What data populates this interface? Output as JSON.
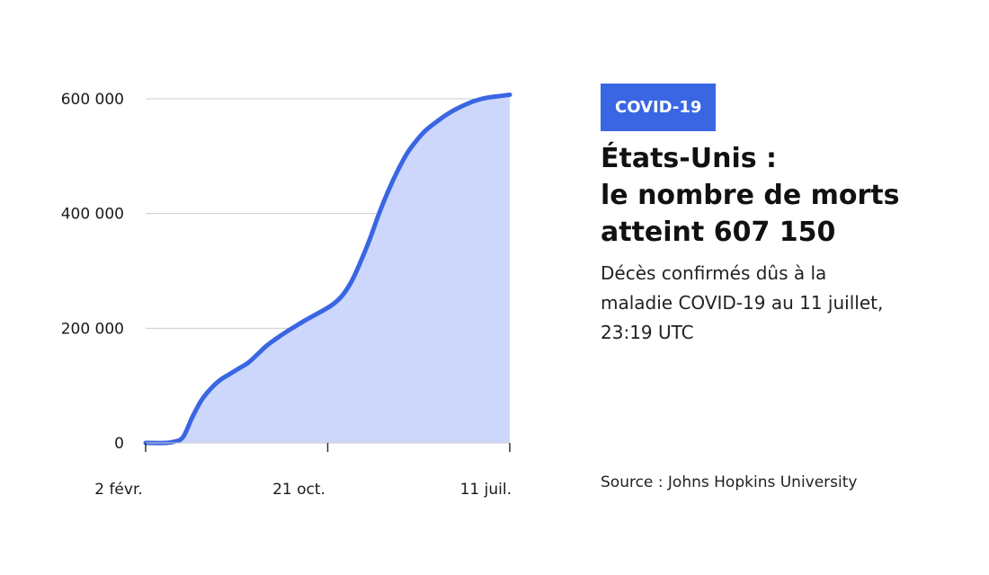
{
  "badge": "COVID-19",
  "title": {
    "lines": [
      "États-Unis :",
      "le nombre de morts",
      "atteint 607 150"
    ]
  },
  "subtitle": {
    "lines": [
      "Décès confirmés dûs à la",
      "maladie COVID-19 au 11 juillet,",
      "23:19 UTC"
    ]
  },
  "source": "Source : Johns Hopkins University",
  "colors": {
    "line": "#3a66e3",
    "fill": "#cdd7fb",
    "badge_bg": "#3a66e3",
    "grid": "#cccccc"
  },
  "chart_data": {
    "type": "area",
    "x_unit": "weeks since first date",
    "x": [
      0,
      4,
      6,
      8,
      10,
      12,
      14,
      16,
      18,
      20,
      22,
      24,
      26,
      28,
      30,
      32,
      34,
      36,
      38,
      40,
      42,
      44,
      46,
      48,
      50,
      52,
      54,
      56,
      58,
      60,
      62,
      64,
      66,
      68,
      70,
      72,
      74,
      76,
      78
    ],
    "values": [
      0,
      0,
      2000,
      10000,
      45000,
      75000,
      95000,
      110000,
      120000,
      130000,
      140000,
      155000,
      170000,
      182000,
      193000,
      203000,
      213000,
      222000,
      231000,
      241000,
      256000,
      280000,
      315000,
      355000,
      400000,
      440000,
      475000,
      505000,
      527000,
      545000,
      558000,
      570000,
      580000,
      588000,
      595000,
      600000,
      603000,
      605000,
      607150
    ],
    "x_ticks": [
      {
        "x": 0,
        "label": "2 févr."
      },
      {
        "x": 39,
        "label": "21 oct."
      },
      {
        "x": 78,
        "label": "11 juil."
      }
    ],
    "y_ticks": [
      {
        "value": 0,
        "label": "0"
      },
      {
        "value": 200000,
        "label": "200 000"
      },
      {
        "value": 400000,
        "label": "400 000"
      },
      {
        "value": 600000,
        "label": "600 000"
      }
    ],
    "xlim": [
      0,
      78
    ],
    "ylim": [
      0,
      600000
    ],
    "grid": true,
    "title": "",
    "xlabel": "",
    "ylabel": ""
  }
}
